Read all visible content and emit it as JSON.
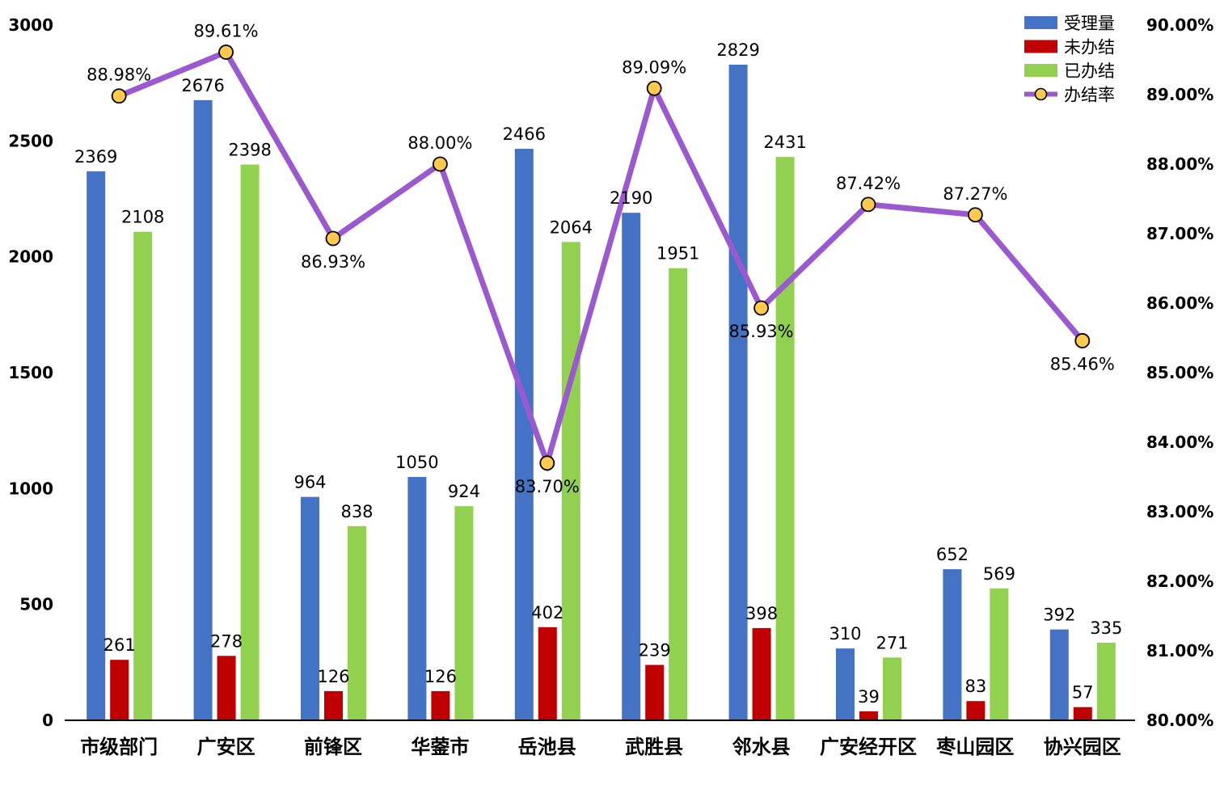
{
  "chart_data": {
    "type": "bar",
    "categories": [
      "市级部门",
      "广安区",
      "前锋区",
      "华蓥市",
      "岳池县",
      "武胜县",
      "邻水县",
      "广安经开区",
      "枣山园区",
      "协兴园区"
    ],
    "series": [
      {
        "name": "受理量",
        "type": "bar",
        "axis": "left",
        "color": "#4472C4",
        "values": [
          2369,
          2676,
          964,
          1050,
          2466,
          2190,
          2829,
          310,
          652,
          392
        ],
        "labels": [
          "2369",
          "2676",
          "964",
          "1050",
          "2466",
          "2190",
          "2829",
          "310",
          "652",
          "392"
        ]
      },
      {
        "name": "未办结",
        "type": "bar",
        "axis": "left",
        "color": "#C00000",
        "values": [
          261,
          278,
          126,
          126,
          402,
          239,
          398,
          39,
          83,
          57
        ],
        "labels": [
          "261",
          "278",
          "126",
          "126",
          "402",
          "239",
          "398",
          "39",
          "83",
          "57"
        ]
      },
      {
        "name": "已办结",
        "type": "bar",
        "axis": "left",
        "color": "#92D050",
        "values": [
          2108,
          2398,
          838,
          924,
          2064,
          1951,
          2431,
          271,
          569,
          335
        ],
        "labels": [
          "2108",
          "2398",
          "838",
          "924",
          "2064",
          "1951",
          "2431",
          "271",
          "569",
          "335"
        ]
      },
      {
        "name": "办结率",
        "type": "line",
        "axis": "right",
        "color": "#9B59D0",
        "marker_color": "#FFC94D",
        "values": [
          88.98,
          89.61,
          86.93,
          88.0,
          83.7,
          89.09,
          85.93,
          87.42,
          87.27,
          85.46
        ],
        "labels": [
          "88.98%",
          "89.61%",
          "86.93%",
          "88.00%",
          "83.70%",
          "89.09%",
          "85.93%",
          "87.42%",
          "87.27%",
          "85.46%"
        ],
        "label_positions": [
          "above",
          "above",
          "below",
          "above",
          "below",
          "above",
          "below",
          "above",
          "above",
          "below"
        ]
      }
    ],
    "y_left": {
      "min": 0,
      "max": 3000,
      "ticks": [
        "0",
        "500",
        "1000",
        "1500",
        "2000",
        "2500",
        "3000"
      ]
    },
    "y_right": {
      "min": 80,
      "max": 90,
      "ticks": [
        "80.00%",
        "81.00%",
        "82.00%",
        "83.00%",
        "84.00%",
        "85.00%",
        "86.00%",
        "87.00%",
        "88.00%",
        "89.00%",
        "90.00%"
      ]
    },
    "grid": false,
    "legend_position": "top-right",
    "title": "",
    "xlabel": "",
    "ylabel": ""
  }
}
